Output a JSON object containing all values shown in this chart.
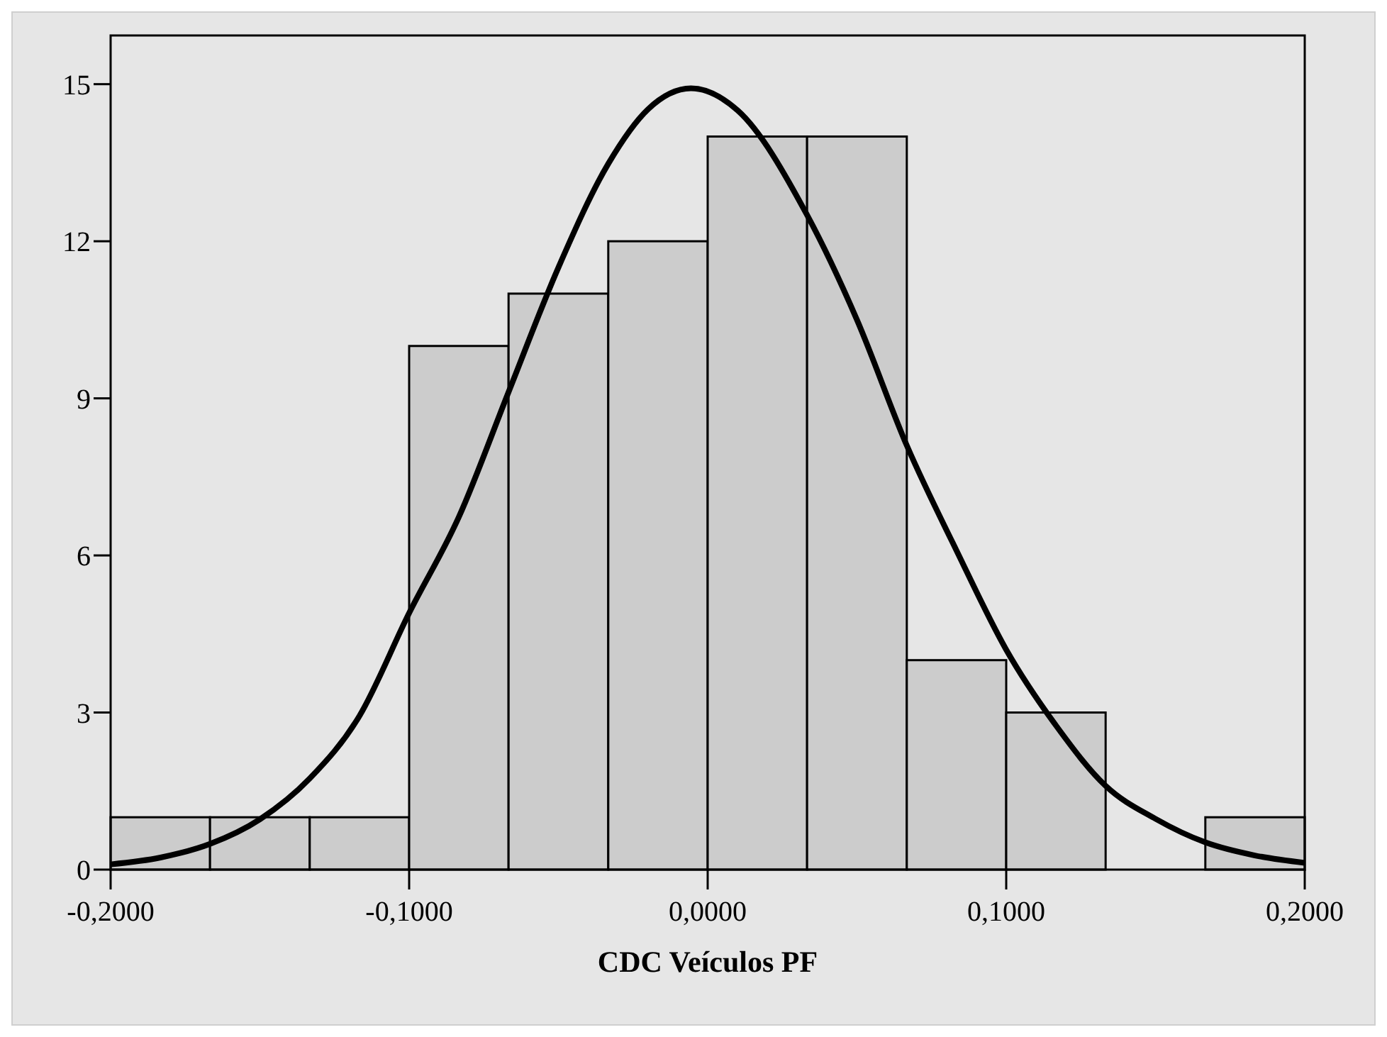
{
  "chart_data": {
    "type": "histogram",
    "xlabel": "CDC Veículos PF",
    "bins": [
      -0.2,
      -0.1667,
      -0.1333,
      -0.1,
      -0.0667,
      -0.0333,
      0,
      0.0333,
      0.0667,
      0.1,
      0.1333,
      0.1667,
      0.2
    ],
    "series": [
      {
        "color": "#cccccc",
        "values": [
          1,
          1,
          1,
          10,
          11,
          12,
          14,
          14,
          4,
          3,
          0,
          1
        ]
      },
      {
        "type": "line",
        "color": "#000000",
        "x": [
          -0.2,
          -0.1833,
          -0.1667,
          -0.15,
          -0.1333,
          -0.1167,
          -0.1,
          -0.0833,
          -0.0667,
          -0.05,
          -0.0333,
          -0.02,
          -0.0056,
          0.01,
          0.0333,
          0.05,
          0.0667,
          0.0833,
          0.1,
          0.1167,
          0.1333,
          0.15,
          0.1667,
          0.1833,
          0.2
        ],
        "values": [
          0.1,
          0.23,
          0.49,
          0.96,
          1.74,
          2.93,
          4.9,
          6.74,
          9.12,
          11.5,
          13.48,
          14.52,
          14.92,
          14.5,
          12.5,
          10.5,
          8.1,
          6.1,
          4.2,
          2.75,
          1.6,
          0.97,
          0.52,
          0.27,
          0.13
        ]
      }
    ],
    "xlim": [
      -0.2,
      0.2
    ],
    "ylim": [
      0,
      15.93
    ],
    "xticks": [
      {
        "value": -0.2,
        "label": "-0,2000"
      },
      {
        "value": -0.1,
        "label": "-0,1000"
      },
      {
        "value": 0,
        "label": "0,0000"
      },
      {
        "value": 0.1,
        "label": "0,1000"
      },
      {
        "value": 0.2,
        "label": "0,2000"
      }
    ],
    "yticks": [
      0,
      3,
      6,
      9,
      12,
      15
    ],
    "grid": false
  }
}
